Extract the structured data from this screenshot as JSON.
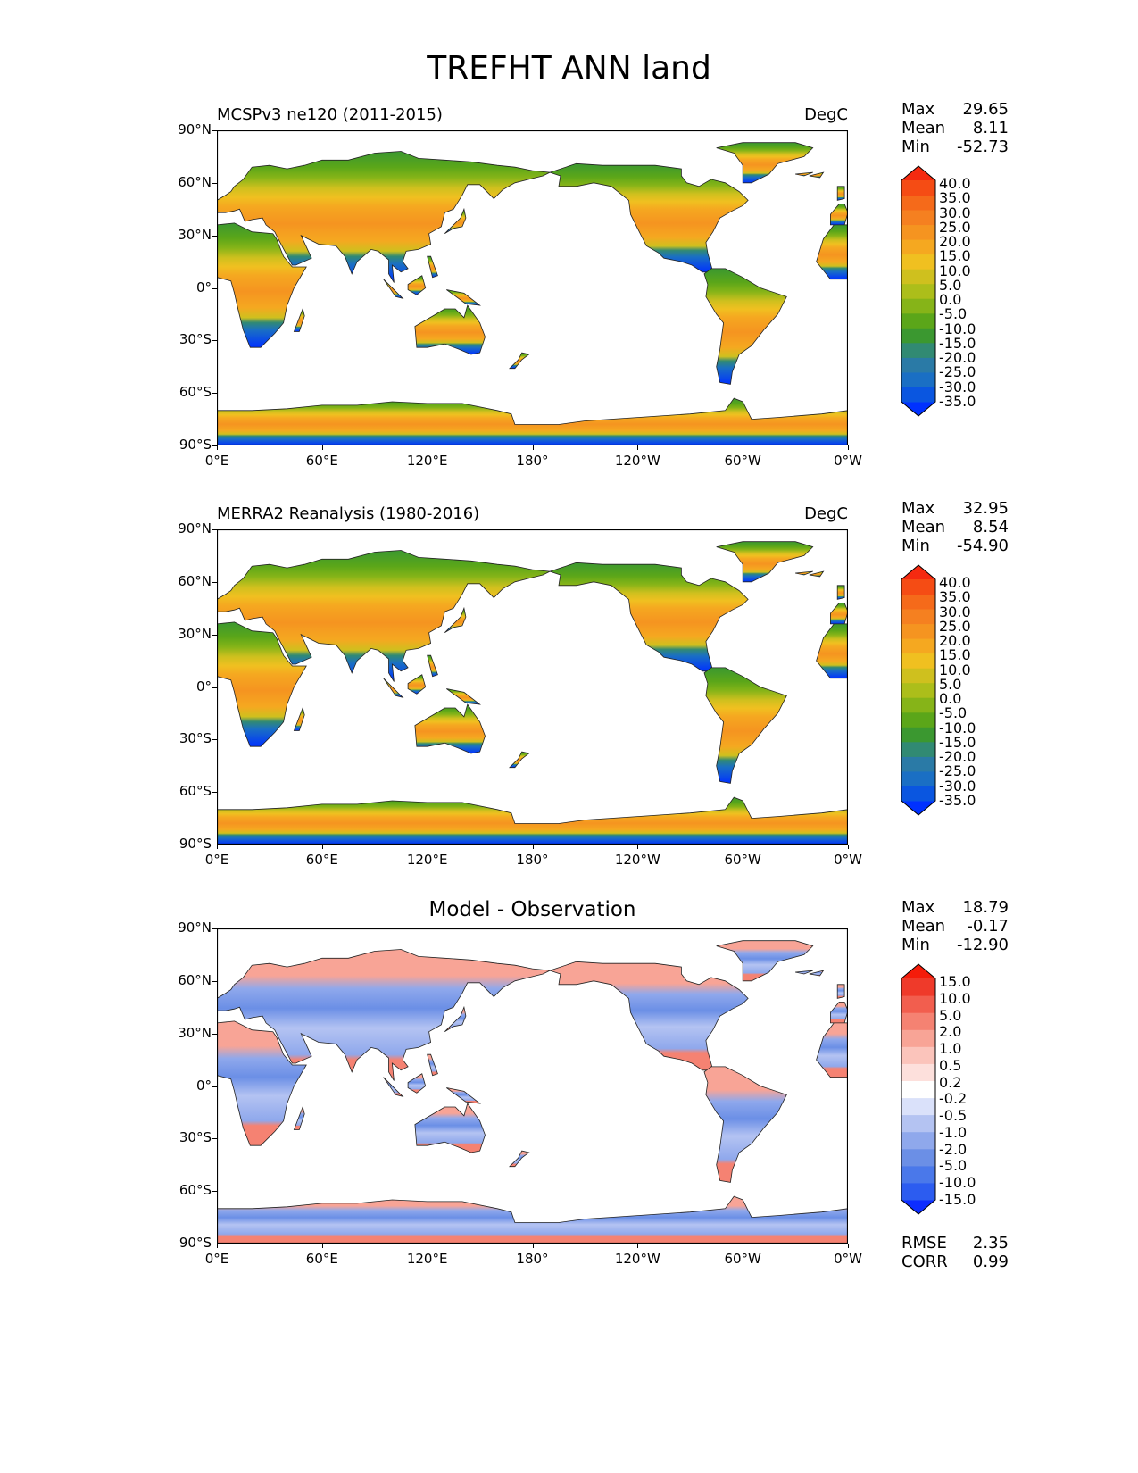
{
  "title": "TREFHT ANN land",
  "y_ticks": [
    "90°N",
    "60°N",
    "30°N",
    "0°",
    "30°S",
    "60°S",
    "90°S"
  ],
  "x_ticks": [
    "0°E",
    "60°E",
    "120°E",
    "180°",
    "120°W",
    "60°W",
    "0°W"
  ],
  "panels": [
    {
      "left_title": "MCSPv3 ne120 (2011-2015)",
      "center_title": "",
      "units": "DegC",
      "stats": {
        "max_label": "Max",
        "max": "29.65",
        "mean_label": "Mean",
        "mean": "8.11",
        "min_label": "Min",
        "min": "-52.73"
      },
      "colorbar_levels": [
        "40.0",
        "35.0",
        "30.0",
        "25.0",
        "20.0",
        "15.0",
        "10.0",
        "5.0",
        "0.0",
        "-5.0",
        "-10.0",
        "-15.0",
        "-20.0",
        "-25.0",
        "-30.0",
        "-35.0"
      ],
      "colorbar_colors": [
        "#0031ff",
        "#0a56e0",
        "#1a6fc4",
        "#2a7aa6",
        "#318a73",
        "#3b9830",
        "#5ba619",
        "#86b418",
        "#acbe1a",
        "#cfc01e",
        "#f0c020",
        "#f5a820",
        "#f59420",
        "#f58020",
        "#f56a1a",
        "#f54c14",
        "#f52a10"
      ],
      "style": "abs"
    },
    {
      "left_title": "MERRA2 Reanalysis (1980-2016)",
      "center_title": "",
      "units": "DegC",
      "stats": {
        "max_label": "Max",
        "max": "32.95",
        "mean_label": "Mean",
        "mean": "8.54",
        "min_label": "Min",
        "min": "-54.90"
      },
      "colorbar_levels": [
        "40.0",
        "35.0",
        "30.0",
        "25.0",
        "20.0",
        "15.0",
        "10.0",
        "5.0",
        "0.0",
        "-5.0",
        "-10.0",
        "-15.0",
        "-20.0",
        "-25.0",
        "-30.0",
        "-35.0"
      ],
      "colorbar_colors": [
        "#0031ff",
        "#0a56e0",
        "#1a6fc4",
        "#2a7aa6",
        "#318a73",
        "#3b9830",
        "#5ba619",
        "#86b418",
        "#acbe1a",
        "#cfc01e",
        "#f0c020",
        "#f5a820",
        "#f59420",
        "#f58020",
        "#f56a1a",
        "#f54c14",
        "#f52a10"
      ],
      "style": "abs2"
    },
    {
      "left_title": "",
      "center_title": "Model - Observation",
      "units": "",
      "stats": {
        "max_label": "Max",
        "max": "18.79",
        "mean_label": "Mean",
        "mean": "-0.17",
        "min_label": "Min",
        "min": "-12.90"
      },
      "colorbar_levels": [
        "15.0",
        "10.0",
        "5.0",
        "2.0",
        "1.0",
        "0.5",
        "0.2",
        "-0.2",
        "-0.5",
        "-1.0",
        "-2.0",
        "-5.0",
        "-10.0",
        "-15.0"
      ],
      "colorbar_colors": [
        "#0d2dff",
        "#2c5cf0",
        "#4a78ea",
        "#6b8fe6",
        "#8fa8ec",
        "#b4c3f2",
        "#dae1fa",
        "#ffffff",
        "#fde0dc",
        "#fbc4bb",
        "#f8a496",
        "#f58272",
        "#f25e4e",
        "#ef3a2a",
        "#f51c0a"
      ],
      "style": "diff",
      "extra": {
        "rmse_label": "RMSE",
        "rmse": "2.35",
        "corr_label": "CORR",
        "corr": "0.99"
      }
    }
  ]
}
